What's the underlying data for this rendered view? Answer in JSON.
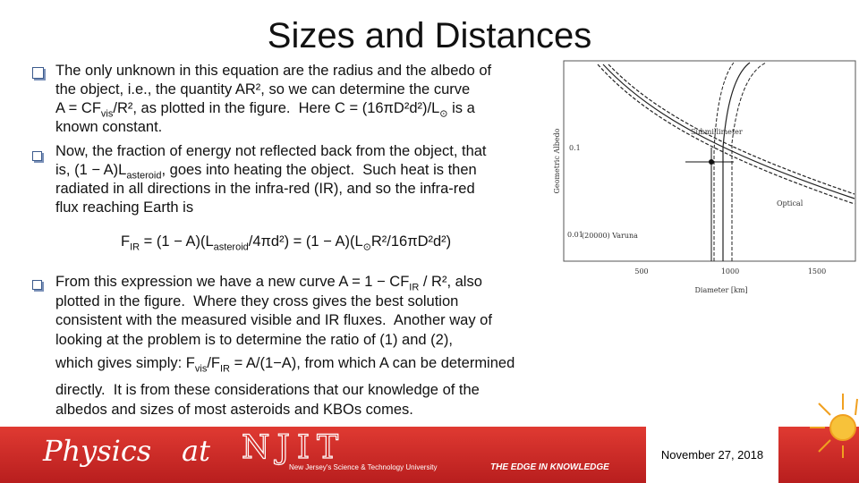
{
  "title": "Sizes and Distances",
  "bullets": [
    {
      "lines": [
        [
          "The only unknown in this equation are the radius and the albedo of"
        ],
        [
          "the object, i.e., the quantity AR², so we can determine the curve"
        ],
        [
          "A = CF",
          {
            "sub": "vis"
          },
          "/R², as plotted in the figure.  Here C = (16πD²d²)/L",
          {
            "sub": "⊙"
          },
          " is a"
        ],
        [
          "known constant."
        ]
      ]
    },
    {
      "lines": [
        [
          "Now, the fraction of energy not reflected back from the object, that"
        ],
        [
          "is, (1 − A)L",
          {
            "sub": "asteroid"
          },
          ", goes into heating the object.  Such heat is then"
        ],
        [
          "radiated in all directions in the infra-red (IR), and so the infra-red"
        ],
        [
          "flux reaching Earth is"
        ]
      ]
    },
    {
      "lines": [
        [
          "From this expression we have a new curve A = 1 − CF",
          {
            "sub": "IR"
          },
          " / R², also"
        ],
        [
          "plotted in the figure.  Where they cross gives the best solution"
        ],
        [
          "consistent with the measured visible and IR fluxes.  Another way of"
        ],
        [
          "looking at the problem is to determine the ratio of (1) and (2),"
        ],
        [
          "which gives simply: F",
          {
            "sub": "vis"
          },
          "/F",
          {
            "sub": "IR"
          },
          " = A/(1−A), from which A can be determined"
        ],
        [
          "directly.  It is from these considerations that our knowledge of the"
        ],
        [
          "albedos and sizes of most asteroids and KBOs comes."
        ]
      ]
    }
  ],
  "equation": [
    "F",
    {
      "sub": "IR"
    },
    " = (1 − A)(L",
    {
      "sub": "asteroid"
    },
    "/4πd²) = (1 − A)(L",
    {
      "sub": "⊙"
    },
    "R²/16πD²d²)"
  ],
  "figure": {
    "y_label": "Geometric Albedo",
    "x_label": "Diameter [km]",
    "x_ticks": [
      "500",
      "1000",
      "1500"
    ],
    "y_ticks": [
      "0.1",
      "0.01"
    ],
    "annotations": [
      "Submillimeter",
      "Optical",
      "(20000) Varuna"
    ]
  },
  "footer": {
    "logo_physics": "Physics",
    "logo_at": "at",
    "logo_njit": "NJIT",
    "tagline": "New Jersey's Science & Technology University",
    "slogan": "THE EDGE IN KNOWLEDGE",
    "date": "November 27, 2018"
  }
}
